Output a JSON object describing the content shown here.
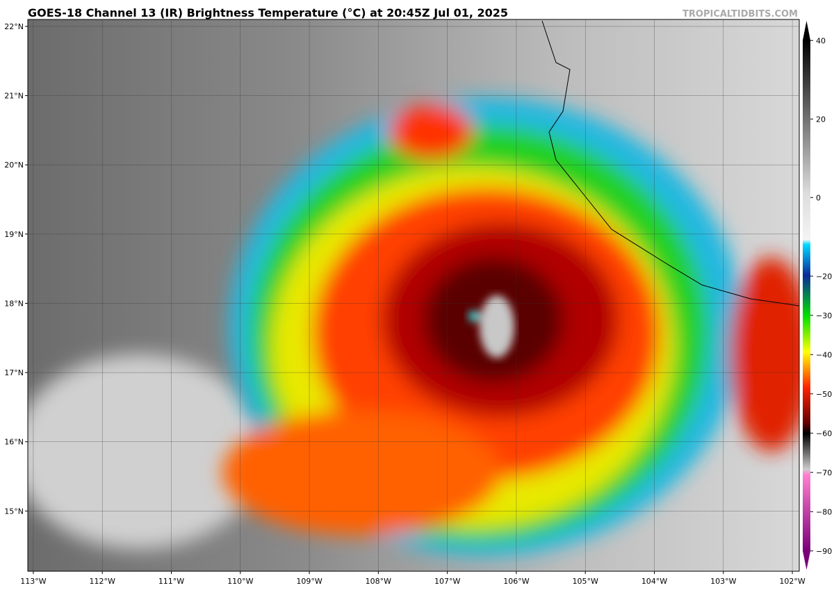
{
  "header": {
    "title": "GOES-18 Channel 13 (IR) Brightness Temperature (°C) at 20:45Z Jul 01, 2025",
    "credit": "TROPICALTIDBITS.COM"
  },
  "map": {
    "lon_range": [
      -113.08,
      -101.9
    ],
    "lat_range": [
      14.13,
      22.1
    ],
    "lon_labels": [
      {
        "value": -113,
        "label": "113°W"
      },
      {
        "value": -112,
        "label": "112°W"
      },
      {
        "value": -111,
        "label": "111°W"
      },
      {
        "value": -110,
        "label": "110°W"
      },
      {
        "value": -109,
        "label": "109°W"
      },
      {
        "value": -108,
        "label": "108°W"
      },
      {
        "value": -107,
        "label": "107°W"
      },
      {
        "value": -106,
        "label": "106°W"
      },
      {
        "value": -105,
        "label": "105°W"
      },
      {
        "value": -104,
        "label": "104°W"
      },
      {
        "value": -103,
        "label": "103°W"
      },
      {
        "value": -102,
        "label": "102°W"
      }
    ],
    "lat_labels": [
      {
        "value": 22,
        "label": "22°N"
      },
      {
        "value": 21,
        "label": "21°N"
      },
      {
        "value": 20,
        "label": "20°N"
      },
      {
        "value": 19,
        "label": "19°N"
      },
      {
        "value": 18,
        "label": "18°N"
      },
      {
        "value": 17,
        "label": "17°N"
      },
      {
        "value": 16,
        "label": "16°N"
      },
      {
        "value": 15,
        "label": "15°N"
      }
    ]
  },
  "colorbar": {
    "range": [
      -95,
      45
    ],
    "ticks": [
      40,
      20,
      0,
      {
        "value": -20,
        "label": "−20"
      },
      {
        "value": -30,
        "label": "−30"
      },
      {
        "value": -40,
        "label": "−40"
      },
      {
        "value": -50,
        "label": "−50"
      },
      {
        "value": -60,
        "label": "−60"
      },
      {
        "value": -70,
        "label": "−70"
      },
      {
        "value": -80,
        "label": "−80"
      },
      {
        "value": -90,
        "label": "−90"
      }
    ]
  }
}
